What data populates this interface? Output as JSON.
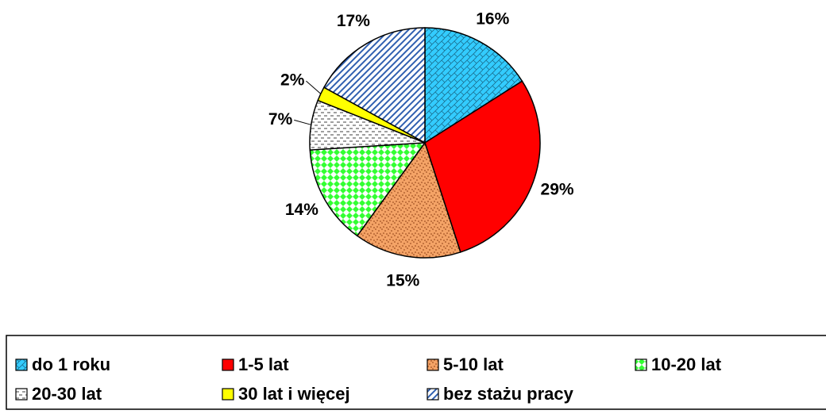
{
  "chart_data": {
    "type": "pie",
    "categories": [
      "do 1 roku",
      "1-5 lat",
      "5-10 lat",
      "10-20 lat",
      "20-30 lat",
      "30 lat i więcej",
      "bez stażu pracy"
    ],
    "values": [
      16,
      29,
      15,
      14,
      7,
      2,
      17
    ],
    "value_labels": [
      "16%",
      "29%",
      "15%",
      "14%",
      "7%",
      "2%",
      "17%"
    ],
    "colors": [
      "#33ccff",
      "#ff0000",
      "#f4a366",
      "#33ff33",
      "#ffffff",
      "#ffff00",
      "#2f5fb0"
    ],
    "legend": "bottom"
  }
}
